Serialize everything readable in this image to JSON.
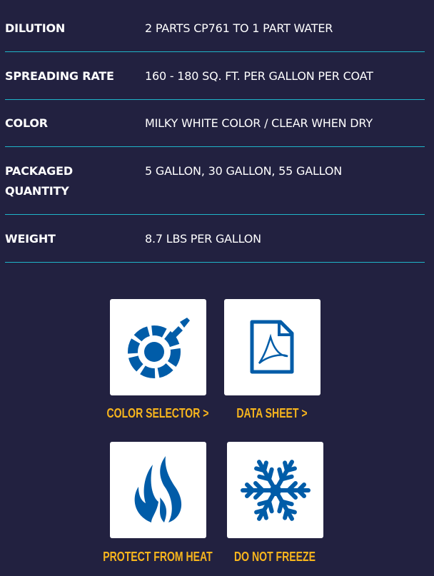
{
  "specs": [
    {
      "label": "DILUTION",
      "value": "2 PARTS CP761 TO 1 PART WATER"
    },
    {
      "label": "SPREADING RATE",
      "value": "160 - 180 SQ. FT. PER GALLON PER COAT"
    },
    {
      "label": "COLOR",
      "value": "MILKY WHITE COLOR / CLEAR WHEN DRY"
    },
    {
      "label": "PACKAGED QUANTITY",
      "value": "5 GALLON, 30 GALLON, 55 GALLON"
    },
    {
      "label": "WEIGHT",
      "value": "8.7 LBS PER GALLON"
    }
  ],
  "tiles": [
    {
      "label": "COLOR SELECTOR >",
      "icon": "color-wheel-icon"
    },
    {
      "label": "DATA SHEET >",
      "icon": "pdf-document-icon"
    },
    {
      "label": "PROTECT FROM HEAT",
      "icon": "flame-icon"
    },
    {
      "label": "DO NOT FREEZE",
      "icon": "snowflake-icon"
    }
  ],
  "colors": {
    "background": "#222140",
    "divider": "#1fb5c9",
    "icon": "#005ca8",
    "caption": "#f7b51d"
  }
}
